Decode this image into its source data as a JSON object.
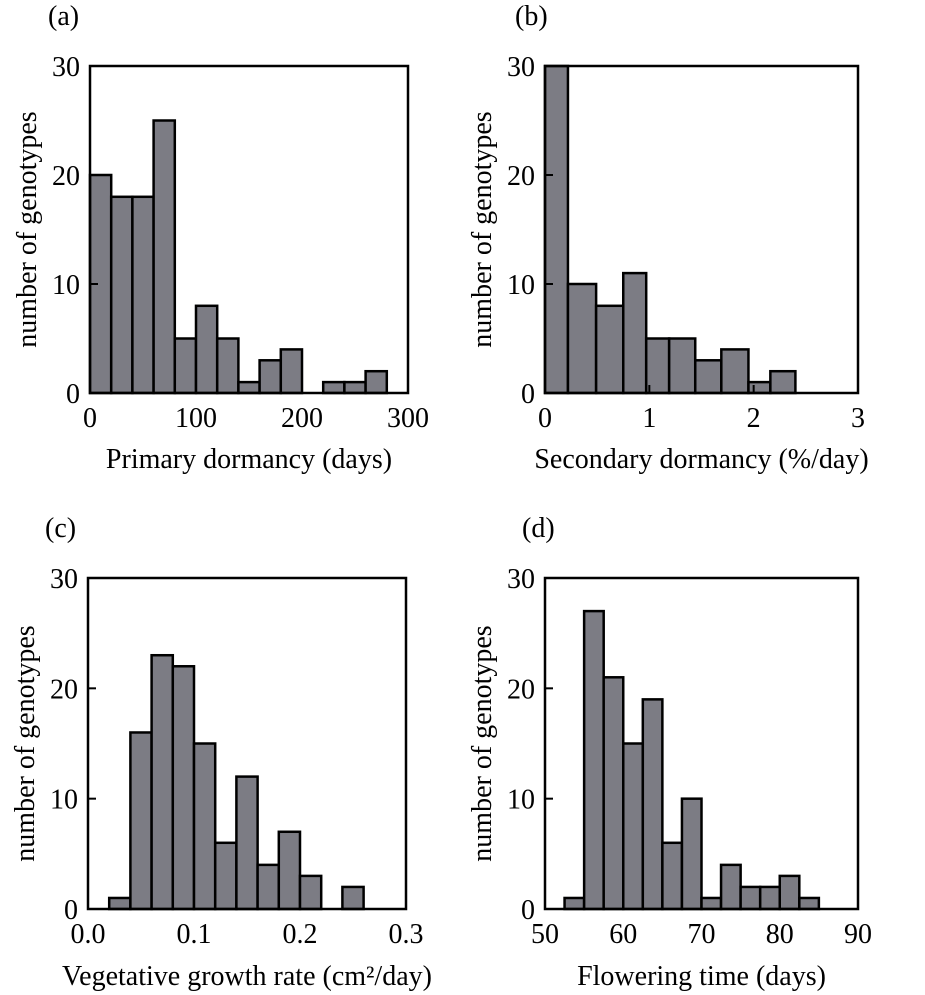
{
  "figure": {
    "bar_color": "#7c7c84",
    "frame_color": "#000000"
  },
  "chart_data": [
    {
      "type": "bar",
      "panel_label": "(a)",
      "xlabel": "Primary dormancy (days)",
      "ylabel": "number of genotypes",
      "xlim": [
        0,
        300
      ],
      "ylim": [
        0,
        30
      ],
      "xticks": [
        0,
        100,
        200,
        300
      ],
      "yticks": [
        0,
        10,
        20,
        30
      ],
      "bin_edges": [
        0,
        20,
        40,
        60,
        80,
        100,
        120,
        140,
        160,
        180,
        200,
        220,
        240,
        260,
        280
      ],
      "values": [
        20,
        18,
        18,
        25,
        5,
        8,
        5,
        1,
        3,
        4,
        0,
        1,
        1,
        2
      ]
    },
    {
      "type": "bar",
      "panel_label": "(b)",
      "xlabel": "Secondary dormancy (%/day)",
      "ylabel": "number of genotypes",
      "xlim": [
        0,
        3
      ],
      "ylim": [
        0,
        30
      ],
      "xticks": [
        0,
        1,
        2,
        3
      ],
      "yticks": [
        0,
        10,
        20,
        30
      ],
      "bin_edges": [
        0,
        0.22,
        0.49,
        0.75,
        0.97,
        1.19,
        1.44,
        1.69,
        1.95,
        2.16,
        2.4
      ],
      "values": [
        30,
        10,
        8,
        11,
        5,
        5,
        3,
        4,
        1,
        2
      ]
    },
    {
      "type": "bar",
      "panel_label": "(c)",
      "xlabel": "Vegetative growth rate (cm²/day)",
      "ylabel": "number of genotypes",
      "xlim": [
        0.0,
        0.3
      ],
      "ylim": [
        0,
        30
      ],
      "xticks": [
        "0.0",
        "0.1",
        "0.2",
        "0.3"
      ],
      "yticks": [
        0,
        10,
        20,
        30
      ],
      "bin_edges": [
        0.0,
        0.02,
        0.04,
        0.06,
        0.08,
        0.1,
        0.12,
        0.14,
        0.16,
        0.18,
        0.2,
        0.22,
        0.24,
        0.26
      ],
      "values": [
        0,
        1,
        16,
        23,
        22,
        15,
        6,
        12,
        4,
        7,
        3,
        0,
        2
      ]
    },
    {
      "type": "bar",
      "panel_label": "(d)",
      "xlabel": "Flowering time (days)",
      "ylabel": "number of genotypes",
      "xlim": [
        50,
        90
      ],
      "ylim": [
        0,
        30
      ],
      "xticks": [
        50,
        60,
        70,
        80,
        90
      ],
      "yticks": [
        0,
        10,
        20,
        30
      ],
      "bin_edges": [
        50,
        52.5,
        55,
        57.5,
        60,
        62.5,
        65,
        67.5,
        70,
        72.5,
        75,
        77.5,
        80,
        82.5,
        85,
        87.5
      ],
      "values": [
        0,
        1,
        27,
        21,
        15,
        19,
        6,
        10,
        1,
        4,
        2,
        2,
        3,
        1,
        0
      ]
    }
  ]
}
